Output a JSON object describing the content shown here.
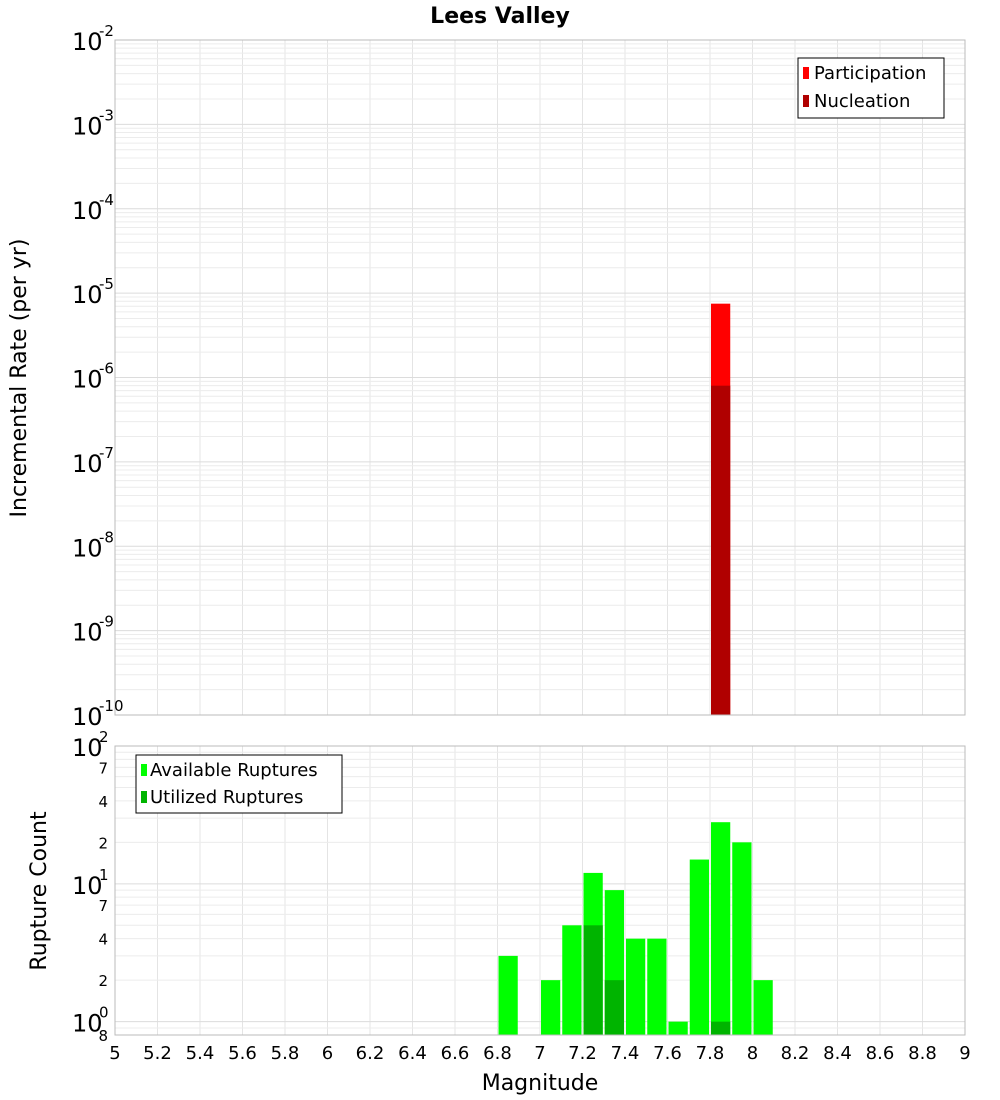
{
  "chart_data": [
    {
      "type": "bar",
      "title": "Lees Valley",
      "xlabel": "",
      "ylabel": "Incremental Rate (per yr)",
      "yscale": "log",
      "ylim": [
        1e-10,
        0.01
      ],
      "xlim": [
        5,
        9
      ],
      "grid": true,
      "legend_position": "top-right",
      "y_ticks": [
        {
          "base": "10",
          "exp": "-10",
          "value": 1e-10
        },
        {
          "base": "10",
          "exp": "-9",
          "value": 1e-09
        },
        {
          "base": "10",
          "exp": "-8",
          "value": 1e-08
        },
        {
          "base": "10",
          "exp": "-7",
          "value": 1e-07
        },
        {
          "base": "10",
          "exp": "-6",
          "value": 1e-06
        },
        {
          "base": "10",
          "exp": "-5",
          "value": 1e-05
        },
        {
          "base": "10",
          "exp": "-4",
          "value": 0.0001
        },
        {
          "base": "10",
          "exp": "-3",
          "value": 0.001
        },
        {
          "base": "10",
          "exp": "-2",
          "value": 0.01
        }
      ],
      "series": [
        {
          "name": "Participation",
          "color": "#ff0000",
          "x": [
            7.85
          ],
          "values": [
            7.5e-06
          ]
        },
        {
          "name": "Nucleation",
          "color": "#b00000",
          "x": [
            7.85
          ],
          "values": [
            8e-07
          ]
        }
      ]
    },
    {
      "type": "bar",
      "xlabel": "Magnitude",
      "ylabel": "Rupture Count",
      "yscale": "log",
      "ylim": [
        0.8,
        100
      ],
      "xlim": [
        5,
        9
      ],
      "grid": true,
      "legend_position": "top-left",
      "x_ticks": [
        "5",
        "5.2",
        "5.4",
        "5.6",
        "5.8",
        "6",
        "6.2",
        "6.4",
        "6.6",
        "6.8",
        "7",
        "7.2",
        "7.4",
        "7.6",
        "7.8",
        "8",
        "8.2",
        "8.4",
        "8.6",
        "8.8",
        "9"
      ],
      "y_major_ticks": [
        {
          "base": "10",
          "exp": "0",
          "value": 1
        },
        {
          "base": "10",
          "exp": "1",
          "value": 10
        },
        {
          "base": "10",
          "exp": "2",
          "value": 100
        }
      ],
      "y_minor_ticks": [
        {
          "label": "8",
          "value": 0.8
        },
        {
          "label": "2",
          "value": 2
        },
        {
          "label": "4",
          "value": 4
        },
        {
          "label": "7",
          "value": 7
        },
        {
          "label": "2",
          "value": 20
        },
        {
          "label": "4",
          "value": 40
        },
        {
          "label": "7",
          "value": 70
        }
      ],
      "series": [
        {
          "name": "Available Ruptures",
          "color": "#00ff00",
          "x": [
            6.85,
            7.05,
            7.15,
            7.25,
            7.35,
            7.45,
            7.55,
            7.65,
            7.75,
            7.85,
            7.95,
            8.05
          ],
          "values": [
            3,
            2,
            5,
            12,
            9,
            4,
            4,
            1,
            15,
            28,
            20,
            2
          ]
        },
        {
          "name": "Utilized Ruptures",
          "color": "#00b400",
          "x": [
            7.25,
            7.35,
            7.85
          ],
          "values": [
            5,
            2,
            1
          ]
        }
      ]
    }
  ]
}
